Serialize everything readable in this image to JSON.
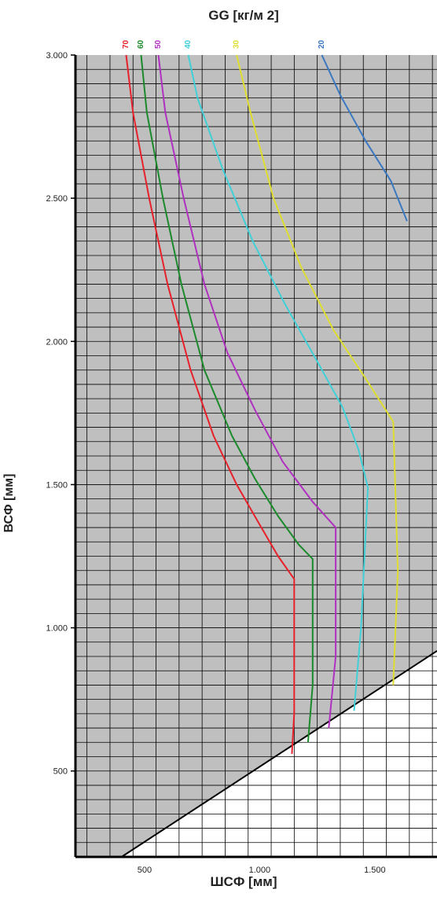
{
  "chart_data": {
    "type": "line",
    "title": "GG [кг/м 2]",
    "xlabel": "ШСФ [мм]",
    "ylabel": "ВСФ [мм]",
    "xlim": [
      200,
      1770
    ],
    "ylim": [
      200,
      3000
    ],
    "x_ticks": [
      {
        "value": 500,
        "label": "500"
      },
      {
        "value": 1000,
        "label": "1.000"
      },
      {
        "value": 1500,
        "label": "1.500"
      }
    ],
    "y_ticks": [
      {
        "value": 500,
        "label": "500"
      },
      {
        "value": 1000,
        "label": "1.000"
      },
      {
        "value": 1500,
        "label": "1.500"
      },
      {
        "value": 2000,
        "label": "2.000"
      },
      {
        "value": 2500,
        "label": "2.500"
      },
      {
        "value": 3000,
        "label": "3.000"
      }
    ],
    "grid": true,
    "shaded_region_color": "#bfbfbf",
    "boundary_line": {
      "color": "#000000",
      "points": [
        [
          400,
          200
        ],
        [
          1800,
          935
        ]
      ]
    },
    "series": [
      {
        "name": "70",
        "color": "#e8202a",
        "points": [
          [
            420,
            3000
          ],
          [
            450,
            2800
          ],
          [
            520,
            2500
          ],
          [
            600,
            2200
          ],
          [
            700,
            1900
          ],
          [
            800,
            1670
          ],
          [
            900,
            1500
          ],
          [
            1000,
            1360
          ],
          [
            1080,
            1250
          ],
          [
            1150,
            1170
          ],
          [
            1150,
            700
          ],
          [
            1140,
            560
          ]
        ]
      },
      {
        "name": "60",
        "color": "#1a8a2a",
        "points": [
          [
            485,
            3000
          ],
          [
            510,
            2800
          ],
          [
            580,
            2500
          ],
          [
            660,
            2200
          ],
          [
            760,
            1900
          ],
          [
            880,
            1670
          ],
          [
            980,
            1520
          ],
          [
            1080,
            1390
          ],
          [
            1170,
            1290
          ],
          [
            1230,
            1240
          ],
          [
            1230,
            800
          ],
          [
            1210,
            600
          ]
        ]
      },
      {
        "name": "50",
        "color": "#b030c0",
        "points": [
          [
            560,
            3000
          ],
          [
            590,
            2800
          ],
          [
            670,
            2500
          ],
          [
            760,
            2200
          ],
          [
            860,
            1960
          ],
          [
            980,
            1760
          ],
          [
            1100,
            1580
          ],
          [
            1230,
            1440
          ],
          [
            1330,
            1350
          ],
          [
            1330,
            900
          ],
          [
            1300,
            650
          ]
        ]
      },
      {
        "name": "40",
        "color": "#40d0d8",
        "points": [
          [
            690,
            3000
          ],
          [
            730,
            2850
          ],
          [
            840,
            2600
          ],
          [
            970,
            2350
          ],
          [
            1110,
            2130
          ],
          [
            1250,
            1930
          ],
          [
            1360,
            1770
          ],
          [
            1430,
            1620
          ],
          [
            1470,
            1490
          ],
          [
            1440,
            1000
          ],
          [
            1410,
            710
          ]
        ]
      },
      {
        "name": "30",
        "color": "#dede30",
        "points": [
          [
            900,
            3000
          ],
          [
            960,
            2800
          ],
          [
            1060,
            2500
          ],
          [
            1180,
            2260
          ],
          [
            1320,
            2040
          ],
          [
            1460,
            1870
          ],
          [
            1580,
            1720
          ],
          [
            1600,
            1200
          ],
          [
            1580,
            800
          ]
        ]
      },
      {
        "name": "20",
        "color": "#3a78c0",
        "points": [
          [
            1270,
            3000
          ],
          [
            1350,
            2860
          ],
          [
            1460,
            2700
          ],
          [
            1570,
            2560
          ],
          [
            1640,
            2420
          ]
        ]
      }
    ],
    "top_labels": [
      {
        "text": "70",
        "x": 420,
        "color": "#e8202a"
      },
      {
        "text": "60",
        "x": 485,
        "color": "#1a8a2a"
      },
      {
        "text": "50",
        "x": 560,
        "color": "#b030c0"
      },
      {
        "text": "40",
        "x": 690,
        "color": "#40d0d8"
      },
      {
        "text": "30",
        "x": 900,
        "color": "#dede30"
      },
      {
        "text": "20",
        "x": 1270,
        "color": "#3a78c0"
      }
    ]
  }
}
